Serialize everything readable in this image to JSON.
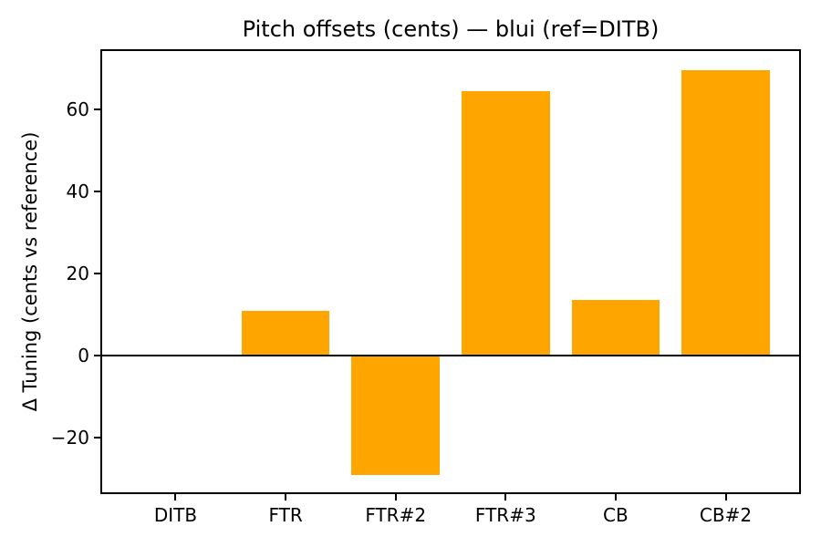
{
  "chart_data": {
    "type": "bar",
    "title": "Pitch offsets (cents) — blui (ref=DITB)",
    "ylabel": "Δ Tuning (cents vs reference)",
    "xlabel": "",
    "categories": [
      "DITB",
      "FTR",
      "FTR#2",
      "FTR#3",
      "CB",
      "CB#2"
    ],
    "values": [
      0,
      10.8,
      -29.0,
      64.4,
      13.6,
      69.5
    ],
    "yticks": [
      -20,
      0,
      20,
      40,
      60
    ],
    "ylim": [
      -33.7,
      74.6
    ],
    "bar_color": "#FFA500",
    "bar_width_fraction": 0.8,
    "zero_line": true,
    "grid": false,
    "legend": "none",
    "background_color": "#FFFFFF",
    "axis_color": "#000000",
    "text_color": "#000000"
  }
}
